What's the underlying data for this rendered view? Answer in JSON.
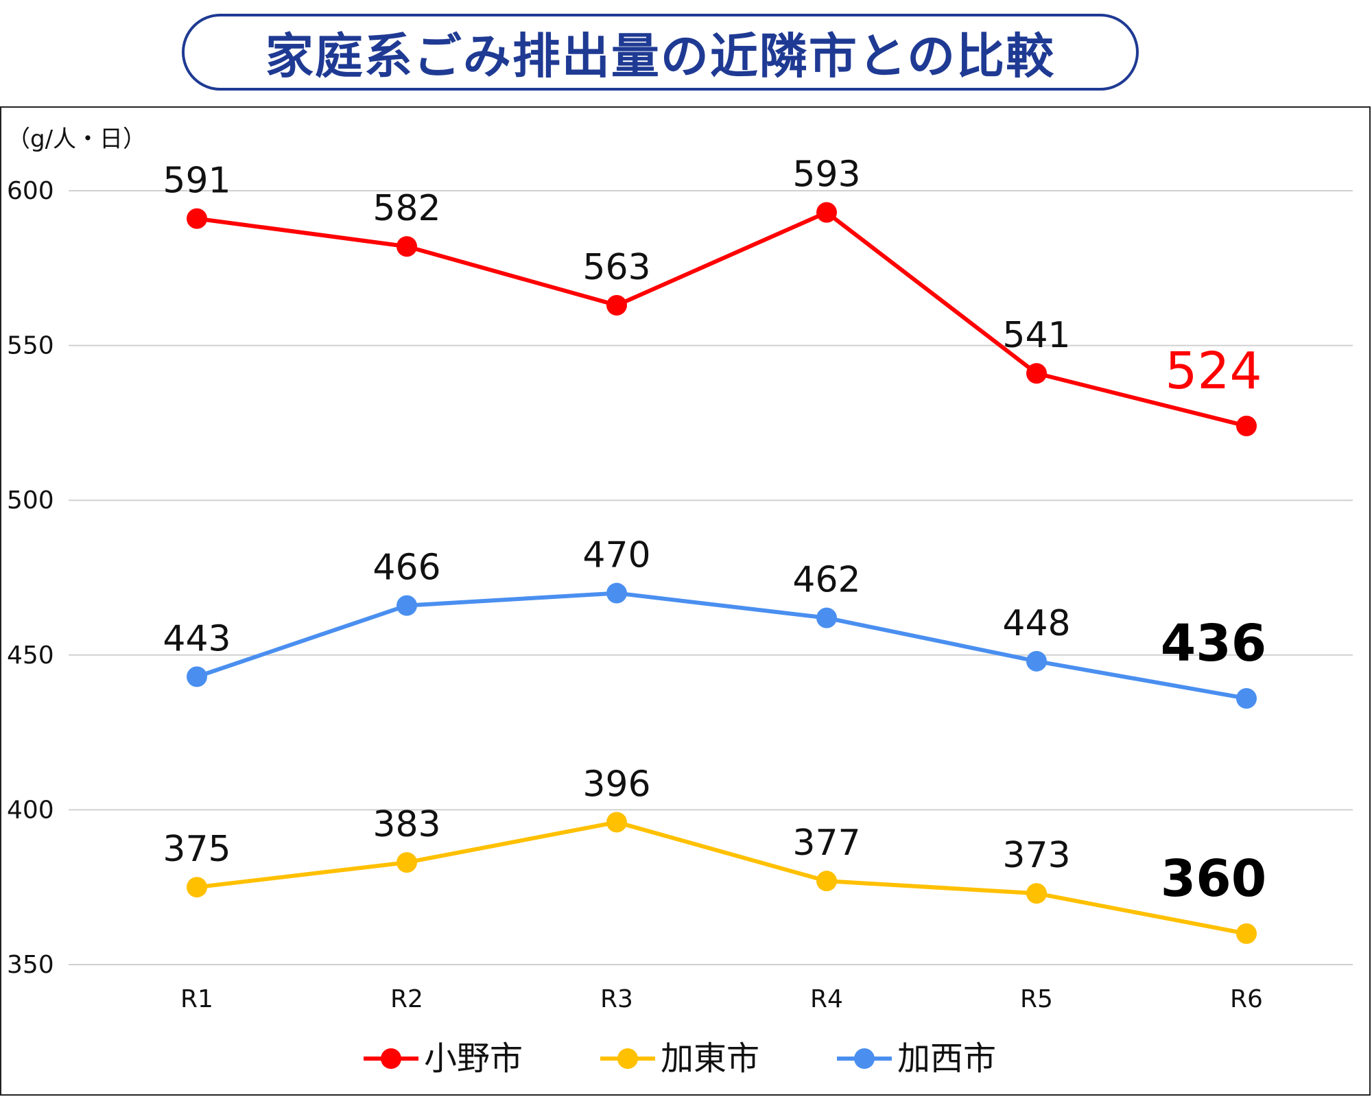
{
  "title": "家庭系ごみ排出量の近隣市との比較",
  "chart_data": {
    "type": "line",
    "unit_label": "（g/人・日）",
    "categories": [
      "R1",
      "R2",
      "R3",
      "R4",
      "R5",
      "R6"
    ],
    "ylim": [
      350,
      600
    ],
    "yticks": [
      350,
      400,
      450,
      500,
      550,
      600
    ],
    "grid": true,
    "legend_position": "bottom",
    "series": [
      {
        "name": "小野市",
        "color": "#ff0000",
        "values": [
          591,
          582,
          563,
          593,
          541,
          524
        ]
      },
      {
        "name": "加東市",
        "color": "#ffc000",
        "values": [
          375,
          383,
          396,
          377,
          373,
          360
        ]
      },
      {
        "name": "加西市",
        "color": "#4a8ff0",
        "values": [
          443,
          466,
          470,
          462,
          448,
          436
        ]
      }
    ],
    "highlight_label_colors": {
      "小野市": "#ff0000",
      "加東市": "#000000",
      "加西市": "#000000"
    }
  }
}
